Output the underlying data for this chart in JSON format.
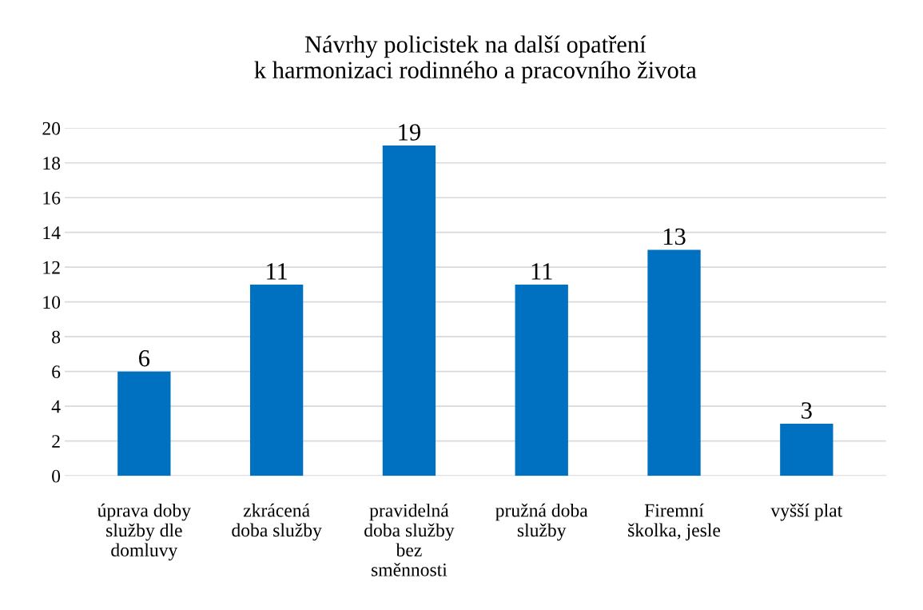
{
  "chart_data": {
    "type": "bar",
    "title": "Návrhy policistek na další opatření\nk harmonizaci rodinného a pracovního života",
    "categories": [
      "úprava doby\nslužby dle\ndomluvy",
      "zkrácená\ndoba služby",
      "pravidelná\ndoba služby\nbez\nsměnnosti",
      "pružná doba\nslužby",
      "Firemní\nškolka, jesle",
      "vyšší plat"
    ],
    "values": [
      6,
      11,
      19,
      11,
      13,
      3
    ],
    "color": "#0070c0",
    "ylim": [
      0,
      20
    ],
    "yticks": [
      0,
      2,
      4,
      6,
      8,
      10,
      12,
      14,
      16,
      18,
      20
    ],
    "grid": "y",
    "data_labels": true
  }
}
